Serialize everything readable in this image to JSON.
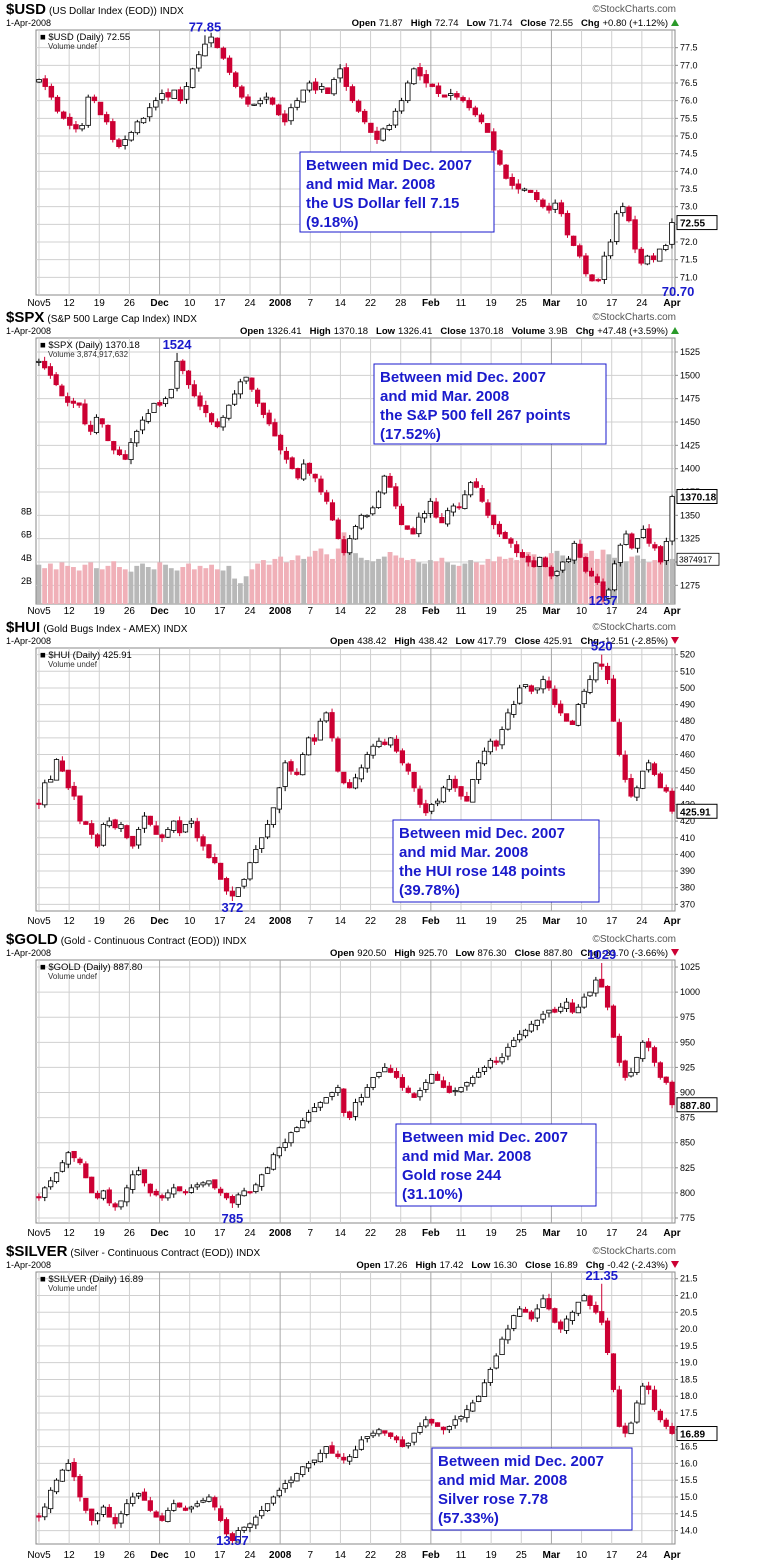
{
  "source": "©StockCharts.com",
  "colors": {
    "up": "#ffffff",
    "down": "#cc0033",
    "outline": "#000000",
    "annotation": "#1a1acc",
    "grid": "#d0d0d0",
    "vol_down": "#f0b0b8",
    "vol_up": "#b8b8b8"
  },
  "chart_data": [
    {
      "type": "candlestick",
      "symbol": "$USD",
      "name": "(US Dollar Index (EOD))",
      "exchange": "INDX",
      "date": "1-Apr-2008",
      "quote": {
        "open_label": "Open",
        "open": "71.87",
        "high_label": "High",
        "high": "72.74",
        "low_label": "Low",
        "low": "71.74",
        "close_label": "Close",
        "close": "72.55",
        "chg_label": "Chg",
        "chg": "+0.80 (+1.12%)",
        "chg_dir": "up"
      },
      "legend_line1": "$USD (Daily) 72.55",
      "legend_line2": "Volume undef",
      "x_ticks": [
        "Nov5",
        "12",
        "19",
        "26",
        "Dec",
        "10",
        "17",
        "24",
        "2008",
        "7",
        "14",
        "22",
        "28",
        "Feb",
        "11",
        "19",
        "25",
        "Mar",
        "10",
        "17",
        "24",
        "Apr"
      ],
      "y_ticks": [
        "77.5",
        "77.0",
        "76.5",
        "76.0",
        "75.5",
        "75.0",
        "74.5",
        "74.0",
        "73.5",
        "73.0",
        "72.5",
        "72.0",
        "71.5",
        "71.0"
      ],
      "ylim": [
        70.5,
        78.0
      ],
      "last_value": "72.55",
      "peak": {
        "label": "77.85",
        "value": 77.85,
        "index": 27
      },
      "trough": {
        "label": "70.70",
        "value": 70.7,
        "index": 104
      },
      "annotation": [
        "Between mid Dec. 2007",
        "and mid Mar. 2008",
        "the US Dollar fell 7.15",
        "(9.18%)"
      ],
      "closes": [
        76.6,
        76.4,
        76.1,
        75.7,
        75.5,
        75.3,
        75.2,
        75.3,
        76.1,
        76.0,
        75.6,
        75.4,
        74.9,
        74.7,
        74.9,
        75.1,
        75.4,
        75.5,
        75.8,
        76.0,
        76.2,
        76.1,
        76.3,
        76.0,
        76.4,
        76.9,
        77.3,
        77.6,
        77.8,
        77.5,
        77.2,
        76.8,
        76.4,
        76.1,
        75.9,
        75.9,
        76.0,
        76.1,
        75.9,
        75.6,
        75.4,
        75.8,
        76.0,
        76.3,
        76.5,
        76.3,
        76.4,
        76.2,
        76.6,
        76.9,
        76.4,
        76.0,
        75.7,
        75.4,
        75.1,
        74.9,
        75.2,
        75.3,
        75.7,
        76.0,
        76.5,
        76.9,
        76.7,
        76.5,
        76.4,
        76.2,
        76.1,
        76.2,
        76.1,
        76.0,
        75.8,
        75.6,
        75.4,
        75.1,
        74.6,
        74.2,
        73.8,
        73.6,
        73.5,
        73.5,
        73.4,
        73.2,
        73.0,
        72.9,
        73.1,
        72.8,
        72.2,
        71.9,
        71.6,
        71.1,
        70.9,
        70.9,
        71.6,
        72.0,
        72.8,
        73.0,
        72.6,
        71.8,
        71.4,
        71.6,
        71.5,
        71.8,
        71.9,
        72.55
      ]
    },
    {
      "type": "candlestick",
      "symbol": "$SPX",
      "name": "(S&P 500 Large Cap Index)",
      "exchange": "INDX",
      "date": "1-Apr-2008",
      "quote": {
        "open_label": "Open",
        "open": "1326.41",
        "high_label": "High",
        "high": "1370.18",
        "low_label": "Low",
        "low": "1326.41",
        "close_label": "Close",
        "close": "1370.18",
        "vol_label": "Volume",
        "volume": "3.9B",
        "chg_label": "Chg",
        "chg": "+47.48 (+3.59%)",
        "chg_dir": "up"
      },
      "legend_line1": "$SPX (Daily) 1370.18",
      "legend_line2": "Volume 3,874,917,632",
      "x_ticks": [
        "Nov5",
        "12",
        "19",
        "26",
        "Dec",
        "10",
        "17",
        "24",
        "2008",
        "7",
        "14",
        "22",
        "28",
        "Feb",
        "11",
        "19",
        "25",
        "Mar",
        "10",
        "17",
        "24",
        "Apr"
      ],
      "y_ticks": [
        "1525",
        "1500",
        "1475",
        "1450",
        "1425",
        "1400",
        "1375",
        "1350",
        "1325",
        "1300",
        "1275"
      ],
      "ylim": [
        1255,
        1540
      ],
      "volume_ticks": [
        "8B",
        "6B",
        "4B",
        "2B"
      ],
      "volume_lim": [
        0,
        9
      ],
      "last_value": "1370.18",
      "last_volume": "3874917",
      "peak": {
        "label": "1524",
        "value": 1524,
        "index": 24
      },
      "trough": {
        "label": "1257",
        "value": 1257,
        "index": 98
      },
      "annotation": [
        "Between mid Dec. 2007",
        "and mid Mar. 2008",
        "the S&P 500 fell 267 points",
        "(17.52%)"
      ],
      "closes": [
        1515,
        1508,
        1500,
        1490,
        1478,
        1471,
        1470,
        1468,
        1448,
        1440,
        1455,
        1448,
        1430,
        1420,
        1415,
        1410,
        1428,
        1440,
        1452,
        1459,
        1470,
        1468,
        1475,
        1485,
        1515,
        1505,
        1490,
        1478,
        1467,
        1460,
        1450,
        1445,
        1455,
        1468,
        1480,
        1493,
        1498,
        1485,
        1470,
        1458,
        1448,
        1435,
        1420,
        1410,
        1400,
        1390,
        1405,
        1395,
        1390,
        1375,
        1365,
        1345,
        1325,
        1310,
        1325,
        1338,
        1350,
        1350,
        1358,
        1375,
        1392,
        1380,
        1360,
        1340,
        1335,
        1330,
        1348,
        1352,
        1365,
        1348,
        1342,
        1355,
        1360,
        1358,
        1372,
        1385,
        1380,
        1365,
        1350,
        1340,
        1330,
        1325,
        1320,
        1310,
        1305,
        1300,
        1295,
        1305,
        1295,
        1285,
        1290,
        1300,
        1303,
        1320,
        1305,
        1290,
        1285,
        1278,
        1262,
        1270,
        1298,
        1318,
        1330,
        1315,
        1325,
        1335,
        1320,
        1315,
        1300,
        1322,
        1370.18
      ],
      "volumes": [
        3.4,
        3.1,
        3.5,
        3.0,
        3.6,
        3.3,
        3.2,
        2.9,
        3.4,
        3.6,
        3.1,
        3.0,
        3.3,
        3.7,
        3.2,
        3.0,
        2.8,
        3.3,
        3.5,
        3.2,
        3.0,
        3.6,
        3.4,
        3.1,
        2.9,
        3.2,
        3.5,
        3.0,
        3.3,
        3.1,
        3.4,
        3.0,
        2.9,
        3.3,
        2.2,
        1.8,
        2.4,
        3.0,
        3.5,
        3.8,
        3.4,
        3.9,
        4.1,
        3.6,
        3.8,
        4.2,
        3.9,
        4.1,
        4.6,
        4.8,
        4.3,
        3.9,
        4.8,
        6.2,
        5.1,
        4.4,
        4.0,
        3.8,
        3.7,
        3.9,
        4.1,
        4.5,
        4.2,
        4.0,
        3.8,
        3.9,
        3.6,
        3.5,
        3.8,
        3.7,
        4.0,
        3.6,
        3.4,
        3.3,
        3.5,
        3.8,
        3.6,
        3.4,
        3.9,
        3.7,
        4.1,
        3.9,
        4.0,
        3.8,
        4.2,
        4.5,
        4.3,
        3.9,
        4.1,
        4.4,
        4.6,
        4.2,
        4.0,
        3.8,
        4.1,
        4.4,
        4.6,
        3.9,
        4.7,
        4.3,
        4.0,
        3.8,
        3.7,
        4.1,
        4.2,
        3.9,
        3.6,
        3.8,
        3.9,
        4.0,
        3.9
      ]
    },
    {
      "type": "candlestick",
      "symbol": "$HUI",
      "name": "(Gold Bugs Index - AMEX)",
      "exchange": "INDX",
      "date": "1-Apr-2008",
      "quote": {
        "open_label": "Open",
        "open": "438.42",
        "high_label": "High",
        "high": "438.42",
        "low_label": "Low",
        "low": "417.79",
        "close_label": "Close",
        "close": "425.91",
        "chg_label": "Chg",
        "chg": "-12.51 (-2.85%)",
        "chg_dir": "down"
      },
      "legend_line1": "$HUI (Daily) 425.91",
      "legend_line2": "Volume undef",
      "x_ticks": [
        "Nov5",
        "12",
        "19",
        "26",
        "Dec",
        "10",
        "17",
        "24",
        "2008",
        "7",
        "14",
        "22",
        "28",
        "Feb",
        "11",
        "19",
        "25",
        "Mar",
        "10",
        "17",
        "24",
        "Apr"
      ],
      "y_ticks": [
        "520",
        "510",
        "500",
        "490",
        "480",
        "470",
        "460",
        "450",
        "440",
        "430",
        "420",
        "410",
        "400",
        "390",
        "380",
        "370"
      ],
      "ylim": [
        366,
        524
      ],
      "last_value": "425.91",
      "peak": {
        "label": "520",
        "value": 520,
        "index": 96
      },
      "trough": {
        "label": "372",
        "value": 372,
        "index": 33
      },
      "annotation": [
        "Between mid Dec. 2007",
        "and mid Mar. 2008",
        "the HUI rose 148 points",
        "(39.78%)"
      ],
      "closes": [
        430,
        443,
        445,
        457,
        450,
        440,
        435,
        420,
        418,
        412,
        405,
        418,
        420,
        416,
        418,
        410,
        405,
        415,
        423,
        418,
        412,
        410,
        415,
        420,
        413,
        418,
        420,
        410,
        405,
        398,
        395,
        385,
        378,
        375,
        380,
        385,
        395,
        403,
        410,
        418,
        428,
        440,
        455,
        450,
        448,
        460,
        470,
        468,
        480,
        485,
        470,
        450,
        443,
        440,
        446,
        452,
        460,
        465,
        468,
        466,
        470,
        462,
        455,
        450,
        440,
        430,
        425,
        430,
        432,
        440,
        445,
        440,
        435,
        432,
        445,
        455,
        462,
        468,
        465,
        475,
        485,
        490,
        500,
        502,
        498,
        500,
        505,
        500,
        490,
        485,
        480,
        478,
        490,
        498,
        505,
        515,
        513,
        505,
        480,
        460,
        445,
        435,
        440,
        450,
        455,
        448,
        440,
        438,
        425.91
      ]
    },
    {
      "type": "candlestick",
      "symbol": "$GOLD",
      "name": "(Gold - Continuous Contract (EOD))",
      "exchange": "INDX",
      "date": "1-Apr-2008",
      "quote": {
        "open_label": "Open",
        "open": "920.50",
        "high_label": "High",
        "high": "925.70",
        "low_label": "Low",
        "low": "876.30",
        "close_label": "Close",
        "close": "887.80",
        "chg_label": "Chg",
        "chg": "-33.70 (-3.66%)",
        "chg_dir": "down"
      },
      "legend_line1": "$GOLD (Daily) 887.80",
      "legend_line2": "Volume undef",
      "x_ticks": [
        "Nov5",
        "12",
        "19",
        "26",
        "Dec",
        "10",
        "17",
        "24",
        "2008",
        "7",
        "14",
        "22",
        "28",
        "Feb",
        "11",
        "19",
        "25",
        "Mar",
        "10",
        "17",
        "24",
        "Apr"
      ],
      "y_ticks": [
        "1025",
        "1000",
        "975",
        "950",
        "925",
        "900",
        "875",
        "850",
        "825",
        "800",
        "775"
      ],
      "ylim": [
        770,
        1032
      ],
      "last_value": "887.80",
      "peak": {
        "label": "1029",
        "value": 1029,
        "index": 96
      },
      "trough": {
        "label": "785",
        "value": 785,
        "index": 33
      },
      "annotation": [
        "Between mid Dec. 2007",
        "and mid Mar. 2008",
        "Gold rose 244",
        "(31.10%)"
      ],
      "closes": [
        795,
        805,
        812,
        820,
        830,
        840,
        835,
        830,
        815,
        800,
        795,
        802,
        790,
        786,
        792,
        805,
        818,
        822,
        810,
        800,
        798,
        795,
        800,
        805,
        802,
        800,
        805,
        808,
        810,
        812,
        805,
        800,
        795,
        790,
        798,
        802,
        800,
        808,
        818,
        825,
        838,
        845,
        850,
        860,
        865,
        872,
        880,
        885,
        890,
        895,
        900,
        905,
        880,
        875,
        890,
        895,
        905,
        915,
        920,
        925,
        920,
        915,
        905,
        900,
        895,
        902,
        910,
        918,
        912,
        905,
        900,
        902,
        905,
        910,
        915,
        920,
        925,
        932,
        930,
        935,
        945,
        952,
        958,
        962,
        968,
        972,
        978,
        982,
        980,
        985,
        990,
        980,
        985,
        995,
        1000,
        1012,
        1005,
        985,
        955,
        930,
        915,
        920,
        935,
        950,
        945,
        930,
        915,
        910,
        887.8
      ]
    },
    {
      "type": "candlestick",
      "symbol": "$SILVER",
      "name": "(Silver - Continuous Contract (EOD))",
      "exchange": "INDX",
      "date": "1-Apr-2008",
      "quote": {
        "open_label": "Open",
        "open": "17.26",
        "high_label": "High",
        "high": "17.42",
        "low_label": "Low",
        "low": "16.30",
        "close_label": "Close",
        "close": "16.89",
        "chg_label": "Chg",
        "chg": "-0.42 (-2.43%)",
        "chg_dir": "down"
      },
      "legend_line1": "$SILVER (Daily) 16.89",
      "legend_line2": "Volume undef",
      "x_ticks": [
        "Nov5",
        "12",
        "19",
        "26",
        "Dec",
        "10",
        "17",
        "24",
        "2008",
        "7",
        "14",
        "22",
        "28",
        "Feb",
        "11",
        "19",
        "25",
        "Mar",
        "10",
        "17",
        "24",
        "Apr"
      ],
      "y_ticks": [
        "21.5",
        "21.0",
        "20.5",
        "20.0",
        "19.5",
        "19.0",
        "18.5",
        "18.0",
        "17.5",
        "17.0",
        "16.5",
        "16.0",
        "15.5",
        "15.0",
        "14.5",
        "14.0"
      ],
      "ylim": [
        13.6,
        21.7
      ],
      "last_value": "16.89",
      "peak": {
        "label": "21.35",
        "value": 21.35,
        "index": 96
      },
      "trough": {
        "label": "13.57",
        "value": 13.57,
        "index": 33
      },
      "annotation": [
        "Between mid Dec. 2007",
        "and mid Mar. 2008",
        "Silver rose 7.78",
        "(57.33%)"
      ],
      "closes": [
        14.4,
        14.7,
        15.2,
        15.5,
        15.8,
        16.0,
        15.6,
        15.0,
        14.6,
        14.3,
        14.5,
        14.7,
        14.4,
        14.2,
        14.5,
        14.8,
        15.0,
        15.1,
        14.9,
        14.6,
        14.4,
        14.3,
        14.6,
        14.8,
        14.7,
        14.6,
        14.7,
        14.8,
        14.9,
        15.0,
        14.7,
        14.3,
        13.9,
        13.7,
        14.0,
        14.1,
        14.2,
        14.4,
        14.6,
        14.8,
        15.0,
        15.2,
        15.4,
        15.5,
        15.7,
        15.9,
        16.0,
        16.1,
        16.3,
        16.5,
        16.3,
        16.2,
        16.1,
        16.2,
        16.4,
        16.7,
        16.8,
        16.9,
        17.0,
        16.9,
        16.8,
        16.7,
        16.5,
        16.6,
        16.9,
        17.1,
        17.3,
        17.2,
        17.1,
        17.0,
        17.1,
        17.3,
        17.4,
        17.6,
        17.8,
        18.0,
        18.4,
        18.8,
        19.2,
        19.7,
        20.0,
        20.4,
        20.6,
        20.5,
        20.3,
        20.6,
        20.9,
        20.6,
        20.2,
        20.0,
        20.3,
        20.5,
        20.8,
        21.0,
        20.7,
        20.5,
        20.2,
        19.3,
        18.2,
        17.1,
        16.9,
        17.2,
        17.8,
        18.3,
        18.2,
        17.6,
        17.3,
        17.1,
        16.89
      ]
    }
  ]
}
